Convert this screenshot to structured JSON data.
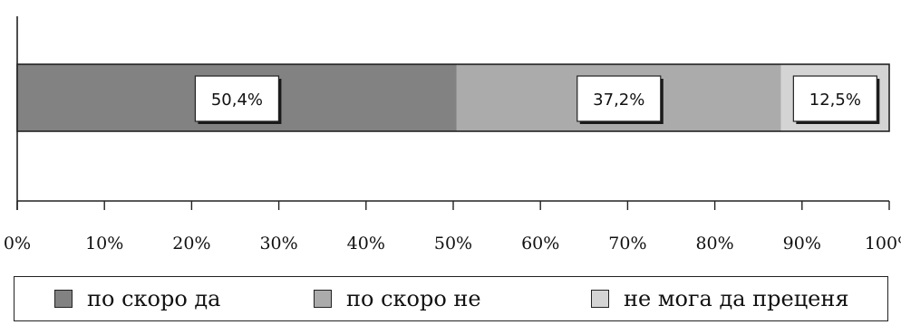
{
  "chart_data": {
    "type": "bar",
    "orientation": "horizontal-stacked",
    "title": "",
    "categories": [
      ""
    ],
    "series": [
      {
        "name": "по скоро да",
        "values": [
          50.4
        ],
        "label": "50,4%",
        "color": "#828282"
      },
      {
        "name": "по скоро не",
        "values": [
          37.2
        ],
        "label": "37,2%",
        "color": "#ababab"
      },
      {
        "name": "не мога да преценя",
        "values": [
          12.5
        ],
        "label": "12,5%",
        "color": "#d4d4d4"
      }
    ],
    "xlim": [
      0,
      100
    ],
    "x_ticks": [
      0,
      10,
      20,
      30,
      40,
      50,
      60,
      70,
      80,
      90,
      100
    ],
    "x_tick_labels": [
      "0%",
      "10%",
      "20%",
      "30%",
      "40%",
      "50%",
      "60%",
      "70%",
      "80%",
      "90%",
      "100%"
    ],
    "xlabel": "",
    "ylabel": "",
    "grid": false,
    "legend_position": "bottom"
  }
}
